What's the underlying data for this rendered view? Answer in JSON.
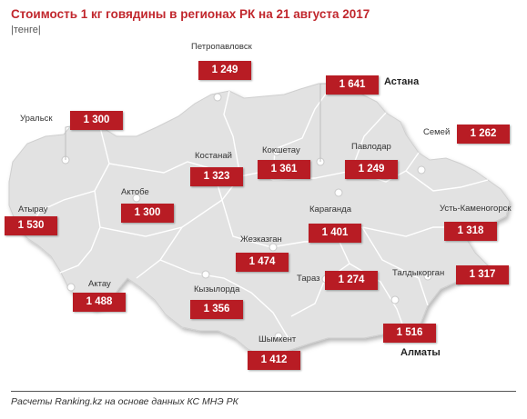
{
  "title": "Стоимость 1 кг говядины в регионах РК на 21 августа 2017",
  "unit": "|тенге|",
  "source": "Расчеты Ranking.kz на основе данных КС МНЭ РК",
  "colors": {
    "badge": "#b81c24",
    "map_fill": "#e3e3e3",
    "region_border": "#ffffff",
    "title": "#c1272d"
  },
  "regions": [
    {
      "name": "Петропавловск",
      "price": "1 249"
    },
    {
      "name": "Астана",
      "price": "1 641"
    },
    {
      "name": "Уральск",
      "price": "1 300"
    },
    {
      "name": "Семей",
      "price": "1 262"
    },
    {
      "name": "Костанай",
      "price": "1 323"
    },
    {
      "name": "Кокшетау",
      "price": "1 361"
    },
    {
      "name": "Павлодар",
      "price": "1 249"
    },
    {
      "name": "Актобе",
      "price": "1 300"
    },
    {
      "name": "Атырау",
      "price": "1 530"
    },
    {
      "name": "Караганда",
      "price": "1 401"
    },
    {
      "name": "Усть-Каменогорск",
      "price": "1 318"
    },
    {
      "name": "Жезказган",
      "price": "1 474"
    },
    {
      "name": "Актау",
      "price": "1 488"
    },
    {
      "name": "Тараз",
      "price": "1 274"
    },
    {
      "name": "Талдыкорган",
      "price": "1 317"
    },
    {
      "name": "Кызылорда",
      "price": "1 356"
    },
    {
      "name": "Шымкент",
      "price": "1 412"
    },
    {
      "name": "Алматы",
      "price": "1 516"
    }
  ]
}
